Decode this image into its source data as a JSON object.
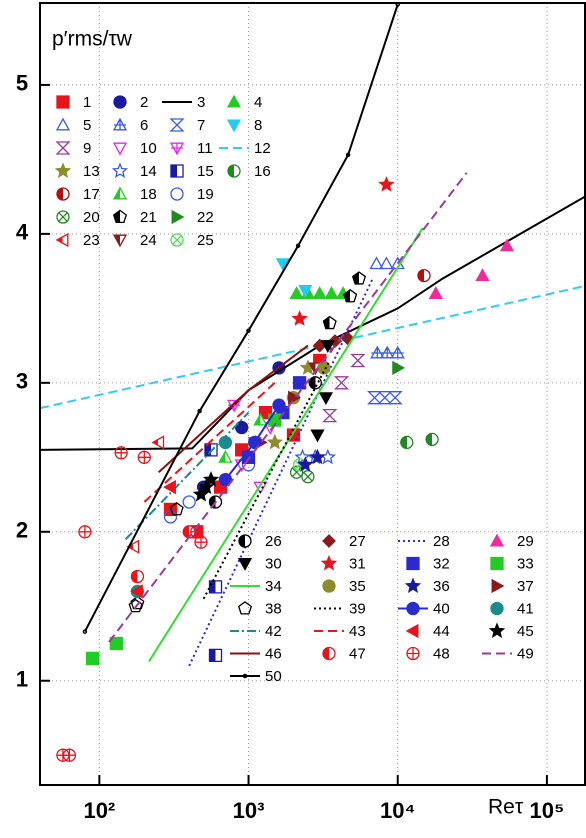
{
  "chart_data": {
    "type": "scatter",
    "x_scale": "log",
    "grid": true,
    "ylabel": "p′rms/τw",
    "xlabel": "Reτ",
    "xlim": [
      40,
      180000
    ],
    "ylim": [
      0.3,
      5.55
    ],
    "xticks": [
      {
        "value": 100,
        "label": "10²"
      },
      {
        "value": 1000,
        "label": "10³"
      },
      {
        "value": 10000,
        "label": "10⁴"
      },
      {
        "value": 100000,
        "label": "10⁵"
      }
    ],
    "yticks": [
      1,
      2,
      3,
      4,
      5
    ],
    "series": [
      {
        "name": "1",
        "color": "#e8141b",
        "marker": "square",
        "fill": "full",
        "line": null,
        "x": [
          300,
          450,
          650,
          900,
          1300,
          2000,
          3000
        ],
        "values": [
          2.15,
          2.0,
          2.3,
          2.55,
          2.8,
          2.65,
          3.15
        ]
      },
      {
        "name": "2",
        "color": "#1a1aa0",
        "marker": "circle",
        "fill": "full",
        "line": null,
        "x": [
          500,
          900,
          1600
        ],
        "values": [
          2.3,
          2.7,
          3.1
        ]
      },
      {
        "name": "3",
        "color": "#000000",
        "marker": null,
        "fill": null,
        "line": "solid",
        "x": [
          40,
          420,
          1000,
          3000,
          10000,
          20000,
          180000
        ],
        "values": [
          2.55,
          2.56,
          2.95,
          3.25,
          3.5,
          3.7,
          4.25
        ]
      },
      {
        "name": "4",
        "color": "#22cc22",
        "marker": "triangle-up",
        "fill": "full",
        "line": null,
        "x": [
          2100,
          2500,
          3000,
          3600,
          4300
        ],
        "values": [
          3.6,
          3.6,
          3.6,
          3.6,
          3.6
        ]
      },
      {
        "name": "5",
        "color": "#3a5de0",
        "marker": "triangle-up",
        "fill": "none",
        "line": null,
        "x": [
          7200,
          8400,
          10000
        ],
        "values": [
          3.8,
          3.8,
          3.8
        ]
      },
      {
        "name": "6",
        "color": "#3a5de0",
        "marker": "triangle-up-plus",
        "fill": "none",
        "line": null,
        "x": [
          7300,
          8500,
          10000
        ],
        "values": [
          3.2,
          3.2,
          3.2
        ]
      },
      {
        "name": "7",
        "color": "#3a5de0",
        "marker": "hourglass",
        "fill": "none",
        "line": null,
        "x": [
          7000,
          8200,
          9600
        ],
        "values": [
          2.9,
          2.9,
          2.9
        ]
      },
      {
        "name": "8",
        "color": "#22ccee",
        "marker": "triangle-down",
        "fill": "full",
        "line": null,
        "x": [
          1700,
          2400
        ],
        "values": [
          3.8,
          3.62
        ]
      },
      {
        "name": "9",
        "color": "#9a3a9a",
        "marker": "hourglass",
        "fill": "none",
        "line": null,
        "x": [
          3500,
          4200,
          5400
        ],
        "values": [
          2.78,
          3.0,
          3.15
        ]
      },
      {
        "name": "10",
        "color": "#ee22ee",
        "marker": "triangle-down",
        "fill": "none",
        "line": null,
        "x": [
          900,
          1200,
          1400
        ],
        "values": [
          2.45,
          2.3,
          2.7
        ]
      },
      {
        "name": "11",
        "color": "#ee22ee",
        "marker": "triangle-down-plus",
        "fill": "none",
        "line": null,
        "x": [
          800,
          1100
        ],
        "values": [
          2.85,
          2.6
        ]
      },
      {
        "name": "12",
        "color": "#33ccee",
        "marker": null,
        "fill": null,
        "line": "dash",
        "x": [
          40,
          180000
        ],
        "values": [
          2.83,
          3.65
        ]
      },
      {
        "name": "13",
        "color": "#8c8c2a",
        "marker": "star",
        "fill": "full",
        "line": null,
        "x": [
          1500,
          2500
        ],
        "values": [
          2.6,
          3.1
        ]
      },
      {
        "name": "14",
        "color": "#3a5de0",
        "marker": "star",
        "fill": "none",
        "line": null,
        "x": [
          2300,
          2800,
          3400
        ],
        "values": [
          2.5,
          2.5,
          2.5
        ]
      },
      {
        "name": "15",
        "color": "#1a1aa0",
        "marker": "square",
        "fill": "half",
        "line": null,
        "x": [
          600,
          600,
          560
        ],
        "values": [
          1.63,
          1.17,
          2.55
        ]
      },
      {
        "name": "16",
        "color": "#228822",
        "marker": "circle",
        "fill": "half",
        "line": null,
        "x": [
          11500,
          17000
        ],
        "values": [
          2.6,
          2.62
        ]
      },
      {
        "name": "17",
        "color": "#b01010",
        "marker": "circle",
        "fill": "half",
        "line": null,
        "x": [
          15000
        ],
        "values": [
          3.72
        ]
      },
      {
        "name": "18",
        "color": "#22cc22",
        "marker": "triangle-up",
        "fill": "half",
        "line": null,
        "x": [
          700,
          1200
        ],
        "values": [
          2.5,
          2.75
        ]
      },
      {
        "name": "19",
        "color": "#3a5de0",
        "marker": "circle",
        "fill": "none",
        "line": null,
        "x": [
          300,
          400,
          1000
        ],
        "values": [
          2.1,
          2.2,
          2.45
        ]
      },
      {
        "name": "20",
        "color": "#228822",
        "marker": "circle-x",
        "fill": "none",
        "line": null,
        "x": [
          2100,
          2500
        ],
        "values": [
          2.4,
          2.37
        ]
      },
      {
        "name": "21",
        "color": "#000000",
        "marker": "pentagon",
        "fill": "half",
        "line": null,
        "x": [
          4800,
          5500,
          3500
        ],
        "values": [
          3.58,
          3.7,
          3.4
        ]
      },
      {
        "name": "22",
        "color": "#228822",
        "marker": "triangle-right",
        "fill": "full",
        "line": null,
        "x": [
          10000
        ],
        "values": [
          3.1
        ]
      },
      {
        "name": "23",
        "color": "#e8141b",
        "marker": "triangle-left",
        "fill": "half",
        "line": null,
        "x": [
          170,
          250
        ],
        "values": [
          1.9,
          2.6
        ]
      },
      {
        "name": "24",
        "color": "#8b1a1a",
        "marker": "triangle-down",
        "fill": "half",
        "line": null,
        "x": [
          2800,
          3600
        ],
        "values": [
          3.1,
          3.25
        ]
      },
      {
        "name": "25",
        "color": "#55dd55",
        "marker": "circle-x",
        "fill": "none",
        "line": null,
        "x": [
          2200
        ],
        "values": [
          2.45
        ]
      },
      {
        "name": "26",
        "color": "#000000",
        "marker": "circle",
        "fill": "half",
        "line": null,
        "x": [
          600,
          2800
        ],
        "values": [
          2.2,
          3.0
        ]
      },
      {
        "name": "27",
        "color": "#8b1a1a",
        "marker": "diamond",
        "fill": "full",
        "line": null,
        "x": [
          3000,
          3800,
          4600
        ],
        "values": [
          3.25,
          3.28,
          3.3
        ]
      },
      {
        "name": "28",
        "color": "#2a2ad0",
        "marker": null,
        "fill": null,
        "line": "dot",
        "x": [
          400,
          6800
        ],
        "values": [
          1.1,
          3.7
        ]
      },
      {
        "name": "29",
        "color": "#ee2d9b",
        "marker": "triangle-up",
        "fill": "full",
        "line": null,
        "x": [
          18000,
          37000,
          54000
        ],
        "values": [
          3.6,
          3.72,
          3.92
        ]
      },
      {
        "name": "30",
        "color": "#000000",
        "marker": "triangle-down",
        "fill": "full",
        "line": null,
        "x": [
          3400,
          2900,
          3300
        ],
        "values": [
          3.25,
          2.65,
          2.9
        ]
      },
      {
        "name": "31",
        "color": "#e8141b",
        "marker": "star",
        "fill": "full",
        "line": null,
        "x": [
          8400,
          2200
        ],
        "values": [
          4.33,
          3.43
        ]
      },
      {
        "name": "32",
        "color": "#2a2ad0",
        "marker": "square",
        "fill": "full",
        "line": null,
        "x": [
          1000,
          1700,
          2200
        ],
        "values": [
          2.5,
          2.8,
          3.0
        ]
      },
      {
        "name": "33",
        "color": "#22cc22",
        "marker": "square",
        "fill": "full",
        "line": null,
        "x": [
          90,
          130,
          1500
        ],
        "values": [
          1.15,
          1.25,
          2.75
        ]
      },
      {
        "name": "34",
        "color": "#33dd33",
        "marker": null,
        "fill": null,
        "line": "solid",
        "x": [
          215,
          14700
        ],
        "values": [
          1.13,
          4.04
        ]
      },
      {
        "name": "35",
        "color": "#8c8c2a",
        "marker": "circle",
        "fill": "full",
        "line": null,
        "x": [
          2000,
          3200
        ],
        "values": [
          2.9,
          3.1
        ]
      },
      {
        "name": "36",
        "color": "#1a1aa0",
        "marker": "star",
        "fill": "full",
        "line": null,
        "x": [
          2400,
          2900
        ],
        "values": [
          2.45,
          2.5
        ]
      },
      {
        "name": "37",
        "color": "#8b1a1a",
        "marker": "triangle-right",
        "fill": "full",
        "line": null,
        "x": [
          2000,
          1200
        ],
        "values": [
          2.9,
          2.6
        ]
      },
      {
        "name": "38",
        "color": "#000000",
        "marker": "pentagon",
        "fill": "none",
        "line": null,
        "x": [
          180,
          330,
          175
        ],
        "values": [
          1.52,
          2.15,
          1.5
        ]
      },
      {
        "name": "39",
        "color": "#000000",
        "marker": null,
        "fill": null,
        "line": "dot",
        "x": [
          500,
          3500
        ],
        "values": [
          1.55,
          3.15
        ]
      },
      {
        "name": "40",
        "color": "#2a2ad0",
        "marker": "circle",
        "fill": "full",
        "line": "solid",
        "x": [
          700,
          1100,
          1600
        ],
        "values": [
          2.35,
          2.6,
          2.85
        ]
      },
      {
        "name": "41",
        "color": "#1a8a8a",
        "marker": "circle",
        "fill": "full",
        "line": null,
        "x": [
          180,
          700
        ],
        "values": [
          1.6,
          2.6
        ]
      },
      {
        "name": "42",
        "color": "#1a8a8a",
        "marker": null,
        "fill": null,
        "line": "dashdot",
        "x": [
          150,
          1000
        ],
        "values": [
          1.95,
          2.8
        ]
      },
      {
        "name": "43",
        "color": "#e8141b",
        "marker": null,
        "fill": null,
        "line": "dash",
        "x": [
          200,
          1500
        ],
        "values": [
          2.2,
          3.0
        ]
      },
      {
        "name": "44",
        "color": "#e8141b",
        "marker": "triangle-left",
        "fill": "full",
        "line": null,
        "x": [
          300,
          180
        ],
        "values": [
          2.3,
          1.6
        ]
      },
      {
        "name": "45",
        "color": "#000000",
        "marker": "star",
        "fill": "full",
        "line": null,
        "x": [
          480,
          520,
          560
        ],
        "values": [
          2.25,
          2.3,
          2.35
        ]
      },
      {
        "name": "46",
        "color": "#8b1010",
        "marker": null,
        "fill": null,
        "line": "solid",
        "x": [
          250,
          1000,
          2500
        ],
        "values": [
          2.4,
          2.95,
          3.25
        ]
      },
      {
        "name": "47",
        "color": "#e8141b",
        "marker": "circle",
        "fill": "half",
        "line": null,
        "x": [
          180,
          400
        ],
        "values": [
          1.7,
          2.0
        ]
      },
      {
        "name": "48",
        "color": "#e8141b",
        "marker": "circle-plus",
        "fill": "none",
        "line": null,
        "x": [
          57,
          63,
          80,
          140,
          200,
          480,
          450
        ],
        "values": [
          0.5,
          0.5,
          2.0,
          2.53,
          2.5,
          1.93,
          2.0
        ]
      },
      {
        "name": "49",
        "color": "#9a3a9a",
        "marker": null,
        "fill": null,
        "line": "dash",
        "x": [
          116,
          29000
        ],
        "values": [
          1.26,
          4.41
        ]
      },
      {
        "name": "50",
        "color": "#000000",
        "marker": "small-circle",
        "fill": "none",
        "line": "solid",
        "x": [
          80,
          470,
          1000,
          2150,
          4650,
          10000
        ],
        "values": [
          1.33,
          2.81,
          3.35,
          3.92,
          4.53,
          5.54
        ]
      }
    ]
  }
}
